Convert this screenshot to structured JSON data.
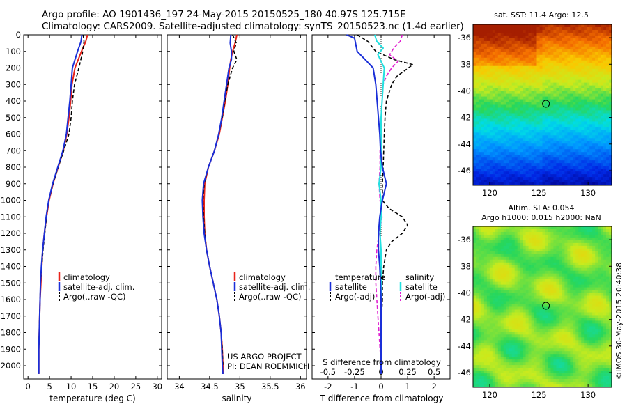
{
  "header": {
    "line1": "Argo profile: AO 1901436_197 24-May-2015 20150525_180 40.97S 125.715E",
    "line2": "Climatology: CARS2009. Satellite-adjusted climatology: synTS_20150523.nc (1.4d earlier)"
  },
  "credit": {
    "project": "US ARGO PROJECT",
    "pi": "PI: DEAN ROEMMICH",
    "stamp": "©IMOS 30-May-2015 20:40:38"
  },
  "colors": {
    "climatology": "#e8231a",
    "satellite": "#1a2fd8",
    "argo": "#000000",
    "sat_salinity": "#23e0e0",
    "argo_salinity": "#e020d0"
  },
  "chart_data": [
    {
      "type": "line",
      "panel": "temperature",
      "xlabel": "temperature (deg C)",
      "ylabel": "",
      "xlim": [
        -1,
        31
      ],
      "ylim": [
        2080,
        0
      ],
      "xticks": [
        "0",
        "5",
        "10",
        "15",
        "20",
        "25",
        "30"
      ],
      "yticks": [
        "0",
        "100",
        "200",
        "300",
        "400",
        "500",
        "600",
        "700",
        "800",
        "900",
        "1000",
        "1100",
        "1200",
        "1300",
        "1400",
        "1500",
        "1600",
        "1700",
        "1800",
        "1900",
        "2000"
      ],
      "legend": [
        "climatology",
        "satellite-adj. clim.",
        "Argo(..raw -QC)"
      ],
      "series": [
        {
          "name": "climatology",
          "depth": [
            0,
            40,
            100,
            200,
            300,
            400,
            500,
            600,
            700,
            800,
            900,
            1000,
            1100,
            1200,
            1300,
            1400,
            1500,
            1600,
            1700,
            1800,
            1900,
            2000,
            2050
          ],
          "values": [
            13.8,
            13.4,
            12.4,
            10.9,
            10.2,
            9.9,
            9.5,
            9.0,
            8.2,
            7.0,
            5.8,
            4.9,
            4.3,
            3.8,
            3.4,
            3.2,
            3.0,
            2.8,
            2.7,
            2.6,
            2.5,
            2.5,
            2.5
          ]
        },
        {
          "name": "satellite-adj. clim.",
          "depth": [
            0,
            40,
            100,
            200,
            300,
            400,
            500,
            600,
            700,
            800,
            900,
            1000,
            1100,
            1200,
            1300,
            1400,
            1500,
            1600,
            1700,
            1800,
            1900,
            2000,
            2050
          ],
          "values": [
            12.5,
            12.3,
            11.5,
            10.3,
            10.0,
            9.7,
            9.3,
            8.9,
            8.1,
            6.9,
            5.7,
            4.8,
            4.2,
            3.8,
            3.4,
            3.1,
            2.9,
            2.8,
            2.7,
            2.6,
            2.5,
            2.5,
            2.5
          ]
        },
        {
          "name": "Argo(..raw -QC)",
          "depth": [
            0,
            40,
            100,
            200,
            300,
            400,
            500,
            600,
            700,
            800,
            900,
            1000,
            1100,
            1200,
            1300,
            1400,
            1500,
            1600,
            1700,
            1800,
            1900,
            2000
          ],
          "values": [
            12.8,
            13.0,
            12.7,
            11.8,
            10.8,
            10.3,
            10.0,
            9.5,
            8.3,
            7.0,
            5.8,
            4.8,
            4.3,
            3.9,
            3.5,
            3.2,
            2.9,
            2.8,
            2.7,
            2.6,
            2.5,
            2.5
          ]
        }
      ]
    },
    {
      "type": "line",
      "panel": "salinity",
      "xlabel": "salinity",
      "ylabel": "",
      "xlim": [
        33.8,
        36.1
      ],
      "ylim": [
        2080,
        0
      ],
      "xticks": [
        "34",
        "34.5",
        "35",
        "35.5",
        "36"
      ],
      "legend": [
        "climatology",
        "satellite-adj. clim.",
        "Argo(..raw -QC)"
      ],
      "series": [
        {
          "name": "climatology",
          "depth": [
            0,
            50,
            100,
            150,
            200,
            300,
            400,
            500,
            600,
            700,
            800,
            900,
            1000,
            1100,
            1200,
            1300,
            1400,
            1500,
            1600,
            1700,
            1800,
            1900,
            2000,
            2050
          ],
          "values": [
            34.95,
            34.92,
            34.88,
            34.85,
            34.83,
            34.8,
            34.76,
            34.71,
            34.66,
            34.58,
            34.48,
            34.42,
            34.41,
            34.41,
            34.42,
            34.45,
            34.5,
            34.56,
            34.62,
            34.66,
            34.69,
            34.71,
            34.72,
            34.72
          ]
        },
        {
          "name": "satellite-adj. clim.",
          "depth": [
            0,
            50,
            100,
            150,
            200,
            300,
            400,
            500,
            600,
            700,
            800,
            900,
            1000,
            1100,
            1200,
            1300,
            1400,
            1500,
            1600,
            1700,
            1800,
            1900,
            2000,
            2050
          ],
          "values": [
            34.85,
            34.84,
            34.86,
            34.86,
            34.82,
            34.78,
            34.74,
            34.7,
            34.65,
            34.58,
            34.48,
            34.4,
            34.38,
            34.39,
            34.41,
            34.45,
            34.5,
            34.56,
            34.62,
            34.66,
            34.69,
            34.7,
            34.71,
            34.72
          ]
        },
        {
          "name": "Argo(..raw -QC)",
          "depth": [
            0,
            50,
            100,
            150,
            200,
            250,
            300,
            400,
            500,
            600,
            700,
            800,
            900,
            1000,
            1100,
            1200,
            1300,
            1400,
            1500,
            1600,
            1700,
            1800,
            1900,
            2000
          ],
          "values": [
            34.88,
            34.94,
            34.9,
            34.95,
            34.88,
            34.84,
            34.8,
            34.75,
            34.71,
            34.65,
            34.58,
            34.48,
            34.41,
            34.39,
            34.4,
            34.42,
            34.45,
            34.5,
            34.56,
            34.62,
            34.66,
            34.69,
            34.71,
            34.72
          ]
        }
      ]
    },
    {
      "type": "line",
      "panel": "differences",
      "xlabel": "T difference from climatology",
      "xlabel_top": "S difference from climatology",
      "xlim": [
        -2.6,
        2.6
      ],
      "ylim": [
        2080,
        0
      ],
      "xticks_bottom": [
        "-2",
        "-1",
        "0",
        "1",
        "2"
      ],
      "xticks_top": [
        "-0.5",
        "-0.25",
        "0",
        "0.25",
        "0.5"
      ],
      "legend_headers": [
        "temperature",
        "salinity"
      ],
      "legend": [
        "satellite",
        "Argo(-adj)",
        "satellite",
        "Argo(-adj)"
      ],
      "series": [
        {
          "name": "T satellite",
          "depth": [
            0,
            20,
            100,
            150,
            200,
            300,
            400,
            500,
            600,
            700,
            800,
            900,
            1000,
            1100,
            1200,
            1300,
            1400,
            1500,
            1600,
            1700,
            1800,
            1900,
            2000,
            2050
          ],
          "values": [
            -1.3,
            -1.0,
            -0.9,
            -0.6,
            -0.3,
            -0.2,
            -0.15,
            -0.1,
            -0.05,
            -0.02,
            0.05,
            0.2,
            0.05,
            -0.05,
            -0.1,
            -0.1,
            -0.05,
            -0.02,
            0.0,
            0.0,
            0.0,
            0.0,
            0.0,
            0.0
          ]
        },
        {
          "name": "T Argo(-adj)",
          "depth": [
            0,
            40,
            100,
            150,
            180,
            250,
            300,
            350,
            400,
            500,
            600,
            700,
            800,
            900,
            1000,
            1050,
            1100,
            1150,
            1200,
            1250,
            1300,
            1400,
            1500,
            1600,
            1700,
            1800,
            1900,
            2000
          ],
          "values": [
            -0.9,
            -0.5,
            -0.2,
            0.5,
            1.2,
            0.6,
            0.4,
            0.3,
            0.2,
            0.15,
            0.12,
            0.1,
            0.08,
            0.05,
            0.05,
            0.3,
            0.8,
            1.0,
            0.8,
            0.4,
            0.2,
            0.1,
            0.05,
            0.05,
            0.02,
            0.01,
            0.0,
            0.0
          ]
        },
        {
          "name": "S satellite",
          "depth": [
            0,
            40,
            80,
            120,
            200,
            300,
            400,
            500,
            600,
            700,
            800,
            900,
            1000,
            1100,
            1200,
            1300,
            1400,
            1500,
            1600,
            1700,
            1800,
            1900,
            2000
          ],
          "values": [
            -0.06,
            -0.04,
            0.02,
            -0.03,
            0.03,
            0.02,
            0.01,
            0.0,
            0.0,
            0.0,
            0.0,
            -0.02,
            0.0,
            0.0,
            -0.01,
            0.0,
            0.0,
            0.0,
            0.0,
            0.0,
            0.0,
            0.0,
            0.0
          ]
        },
        {
          "name": "S Argo(-adj)",
          "depth": [
            0,
            40,
            80,
            120,
            160,
            200,
            250,
            300,
            400,
            500,
            600,
            700,
            800,
            900,
            1000,
            1100,
            1200,
            1300,
            1400,
            1500,
            1600,
            1700,
            1800,
            1900,
            2000
          ],
          "values": [
            0.2,
            0.18,
            0.12,
            0.08,
            0.16,
            0.1,
            0.05,
            0.02,
            0.01,
            0.0,
            0.0,
            -0.01,
            -0.01,
            -0.02,
            -0.01,
            0.01,
            -0.02,
            -0.04,
            -0.05,
            -0.05,
            -0.04,
            -0.03,
            -0.02,
            -0.01,
            0.0
          ]
        }
      ]
    },
    {
      "type": "heatmap",
      "panel": "sst-map",
      "title": "sat. SST: 11.4 Argo: 12.5",
      "xticks": [
        "120",
        "125",
        "130"
      ],
      "yticks": [
        "-36",
        "-38",
        "-40",
        "-42",
        "-44",
        "-46"
      ],
      "xlim": [
        118.3,
        132.4
      ],
      "ylim": [
        -47.1,
        -35.0
      ],
      "float_position": {
        "lon": 125.715,
        "lat": -40.97
      }
    },
    {
      "type": "heatmap",
      "panel": "sla-map",
      "title": "Altim. SLA: 0.054",
      "subtitle": "Argo h1000: 0.015 h2000: NaN",
      "xticks": [
        "120",
        "125",
        "130"
      ],
      "yticks": [
        "-36",
        "-38",
        "-40",
        "-42",
        "-44",
        "-46"
      ],
      "xlim": [
        118.3,
        132.4
      ],
      "ylim": [
        -47.1,
        -35.0
      ],
      "float_position": {
        "lon": 125.715,
        "lat": -40.97
      }
    }
  ]
}
